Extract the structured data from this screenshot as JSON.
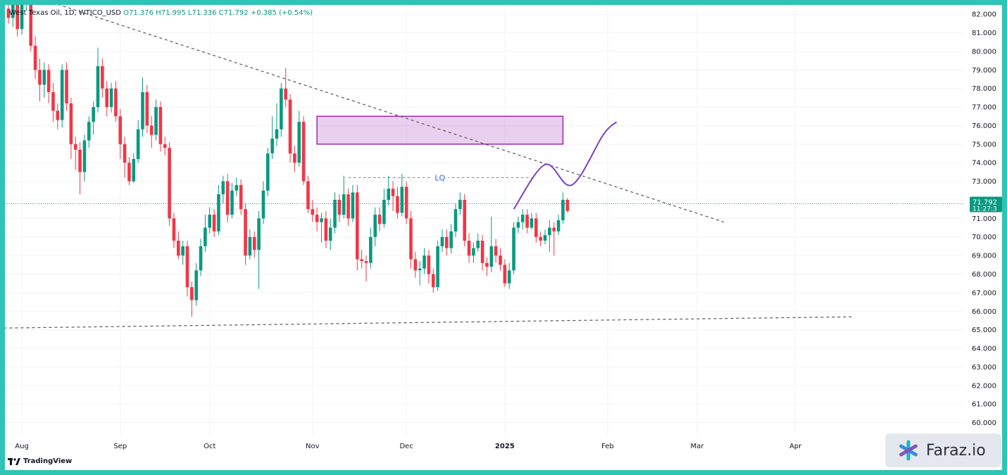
{
  "legend": {
    "symbol": "West Texas Oil, 1D, WTICO_USD",
    "open": "O71.376",
    "high": "H71.995",
    "low": "L71.336",
    "close": "C71.792",
    "change": "+0.385 (+0.54%)"
  },
  "price_tag": {
    "price": "71.792",
    "countdown": "11:27:3"
  },
  "watermark": {
    "tradingview": "TradingView",
    "brand": "Faraz.io"
  },
  "colors": {
    "bull": "#089981",
    "bear": "#f23645",
    "zone": "#9c27b0",
    "path": "#7e3fc7",
    "frame": "#2ec4b6",
    "lq_label": "#2962ff"
  },
  "chart_data": {
    "type": "candlestick",
    "instrument": "WTICO_USD",
    "timeframe": "1D",
    "ylim": [
      59.3,
      82.5
    ],
    "y_ticks": [
      82,
      81,
      80,
      79,
      78,
      77,
      76,
      75,
      74,
      73,
      72,
      71,
      70,
      69,
      68,
      67,
      66,
      65,
      64,
      63,
      62,
      61,
      60
    ],
    "x_ticks": [
      {
        "label": "Aug",
        "bar": 3
      },
      {
        "label": "Sep",
        "bar": 25
      },
      {
        "label": "Oct",
        "bar": 45
      },
      {
        "label": "Nov",
        "bar": 68
      },
      {
        "label": "Dec",
        "bar": 89
      },
      {
        "label": "2025",
        "bar": 111
      },
      {
        "label": "Feb",
        "bar": 134
      },
      {
        "label": "Mar",
        "bar": 154
      },
      {
        "label": "Apr",
        "bar": 176
      }
    ],
    "candles": [
      [
        82.3,
        81.8,
        83.0,
        81.5
      ],
      [
        81.8,
        82.8,
        83.2,
        81.3
      ],
      [
        82.8,
        81.2,
        83.0,
        80.8
      ],
      [
        81.2,
        82.5,
        82.8,
        80.9
      ],
      [
        82.5,
        82.9,
        83.2,
        82.2
      ],
      [
        82.9,
        80.3,
        83.1,
        80.0
      ],
      [
        80.3,
        79.0,
        80.8,
        78.5
      ],
      [
        79.0,
        78.2,
        79.6,
        77.3
      ],
      [
        78.2,
        79.0,
        79.4,
        77.5
      ],
      [
        79.0,
        77.8,
        79.3,
        77.2
      ],
      [
        77.8,
        76.8,
        78.3,
        76.2
      ],
      [
        76.8,
        76.3,
        77.2,
        75.8
      ],
      [
        76.3,
        79.0,
        79.3,
        75.9
      ],
      [
        79.0,
        77.2,
        79.4,
        76.8
      ],
      [
        77.2,
        75.0,
        77.5,
        74.2
      ],
      [
        75.0,
        74.7,
        75.4,
        73.6
      ],
      [
        74.7,
        73.5,
        75.1,
        72.3
      ],
      [
        73.5,
        75.2,
        75.5,
        73.0
      ],
      [
        75.2,
        76.2,
        76.5,
        74.8
      ],
      [
        76.2,
        77.0,
        77.3,
        75.5
      ],
      [
        77.0,
        79.2,
        80.2,
        76.7
      ],
      [
        79.2,
        78.0,
        79.6,
        77.5
      ],
      [
        78.0,
        77.0,
        78.4,
        76.5
      ],
      [
        77.0,
        78.0,
        78.3,
        76.7
      ],
      [
        78.0,
        76.5,
        78.4,
        76.2
      ],
      [
        76.5,
        75.0,
        76.9,
        74.2
      ],
      [
        75.0,
        74.0,
        75.4,
        73.2
      ],
      [
        74.0,
        73.0,
        74.3,
        72.8
      ],
      [
        73.0,
        74.2,
        74.5,
        72.9
      ],
      [
        74.2,
        75.8,
        76.3,
        74.0
      ],
      [
        75.8,
        77.8,
        78.6,
        75.4
      ],
      [
        77.8,
        76.0,
        78.2,
        75.6
      ],
      [
        76.0,
        75.5,
        76.5,
        74.8
      ],
      [
        75.5,
        77.0,
        77.4,
        75.2
      ],
      [
        77.0,
        75.0,
        77.3,
        74.6
      ],
      [
        75.0,
        74.8,
        75.4,
        74.4
      ],
      [
        74.8,
        71.0,
        75.1,
        70.6
      ],
      [
        71.0,
        69.8,
        71.3,
        69.4
      ],
      [
        69.8,
        69.0,
        70.3,
        68.8
      ],
      [
        69.0,
        69.5,
        69.8,
        68.5
      ],
      [
        69.5,
        67.3,
        69.8,
        66.8
      ],
      [
        67.3,
        66.6,
        67.6,
        65.7
      ],
      [
        66.6,
        68.2,
        68.6,
        66.3
      ],
      [
        68.2,
        69.5,
        69.9,
        67.9
      ],
      [
        69.5,
        70.5,
        71.2,
        69.2
      ],
      [
        70.5,
        71.2,
        71.6,
        70.2
      ],
      [
        71.2,
        70.3,
        71.5,
        70.0
      ],
      [
        70.3,
        72.3,
        72.8,
        70.1
      ],
      [
        72.3,
        73.0,
        73.3,
        71.8
      ],
      [
        73.0,
        71.2,
        73.4,
        70.8
      ],
      [
        71.2,
        72.5,
        72.9,
        71.0
      ],
      [
        72.5,
        72.8,
        73.2,
        72.2
      ],
      [
        72.8,
        71.5,
        73.1,
        71.2
      ],
      [
        71.5,
        69.0,
        71.8,
        68.5
      ],
      [
        69.0,
        70.0,
        70.4,
        68.8
      ],
      [
        70.0,
        69.3,
        70.3,
        68.9
      ],
      [
        69.3,
        71.0,
        71.4,
        67.2
      ],
      [
        71.0,
        72.5,
        73.0,
        70.7
      ],
      [
        72.5,
        74.5,
        74.8,
        72.2
      ],
      [
        74.5,
        75.3,
        76.5,
        74.2
      ],
      [
        75.3,
        75.8,
        77.2,
        74.9
      ],
      [
        75.8,
        78.0,
        78.3,
        75.4
      ],
      [
        78.0,
        77.4,
        79.1,
        77.0
      ],
      [
        77.4,
        74.5,
        77.7,
        74.0
      ],
      [
        74.5,
        74.0,
        74.9,
        73.5
      ],
      [
        74.0,
        76.2,
        76.8,
        73.8
      ],
      [
        76.2,
        73.0,
        76.5,
        72.8
      ],
      [
        73.0,
        71.5,
        73.3,
        71.3
      ],
      [
        71.5,
        71.2,
        72.0,
        70.8
      ],
      [
        71.2,
        70.8,
        71.6,
        70.3
      ],
      [
        70.8,
        71.0,
        71.3,
        69.7
      ],
      [
        71.0,
        69.8,
        71.4,
        69.4
      ],
      [
        69.8,
        70.5,
        71.0,
        69.3
      ],
      [
        70.5,
        72.0,
        72.4,
        70.2
      ],
      [
        72.0,
        71.2,
        72.3,
        70.8
      ],
      [
        71.2,
        72.3,
        73.3,
        71.0
      ],
      [
        72.3,
        71.0,
        72.6,
        70.6
      ],
      [
        71.0,
        72.4,
        72.8,
        70.8
      ],
      [
        72.4,
        68.8,
        72.8,
        68.2
      ],
      [
        68.8,
        68.7,
        69.3,
        68.3
      ],
      [
        68.7,
        68.6,
        69.0,
        67.6
      ],
      [
        68.6,
        70.0,
        70.5,
        68.3
      ],
      [
        70.0,
        71.2,
        71.6,
        69.5
      ],
      [
        71.2,
        70.7,
        71.6,
        70.3
      ],
      [
        70.7,
        72.0,
        72.6,
        70.5
      ],
      [
        72.0,
        72.6,
        73.3,
        71.7
      ],
      [
        72.6,
        72.2,
        73.0,
        71.4
      ],
      [
        72.2,
        71.3,
        72.7,
        71.0
      ],
      [
        71.3,
        72.7,
        73.4,
        71.1
      ],
      [
        72.7,
        71.0,
        73.0,
        70.7
      ],
      [
        71.0,
        68.8,
        71.4,
        68.3
      ],
      [
        68.8,
        68.2,
        69.2,
        67.8
      ],
      [
        68.2,
        68.3,
        68.7,
        67.4
      ],
      [
        68.3,
        69.0,
        69.4,
        68.0
      ],
      [
        69.0,
        68.0,
        69.3,
        67.5
      ],
      [
        68.0,
        67.3,
        68.3,
        67.0
      ],
      [
        67.3,
        69.5,
        69.8,
        67.1
      ],
      [
        69.5,
        70.0,
        70.4,
        69.2
      ],
      [
        70.0,
        69.4,
        70.4,
        69.0
      ],
      [
        69.4,
        70.3,
        70.7,
        69.1
      ],
      [
        70.3,
        71.5,
        71.8,
        70.0
      ],
      [
        71.5,
        72.0,
        72.4,
        71.2
      ],
      [
        72.0,
        69.8,
        72.3,
        69.5
      ],
      [
        69.8,
        69.0,
        70.2,
        68.6
      ],
      [
        69.0,
        69.4,
        69.7,
        68.6
      ],
      [
        69.4,
        69.8,
        70.2,
        69.2
      ],
      [
        69.8,
        68.6,
        70.1,
        68.2
      ],
      [
        68.6,
        68.4,
        68.9,
        67.9
      ],
      [
        68.4,
        69.5,
        71.1,
        68.1
      ],
      [
        69.5,
        69.0,
        69.9,
        68.6
      ],
      [
        69.0,
        68.5,
        69.4,
        68.2
      ],
      [
        68.5,
        67.5,
        68.8,
        67.3
      ],
      [
        67.5,
        68.2,
        68.6,
        67.2
      ],
      [
        68.2,
        70.5,
        70.8,
        68.0
      ],
      [
        70.5,
        70.8,
        71.1,
        70.2
      ],
      [
        70.8,
        71.2,
        71.5,
        70.4
      ],
      [
        71.2,
        70.5,
        71.5,
        70.2
      ],
      [
        70.5,
        71.0,
        71.3,
        70.4
      ],
      [
        71.0,
        70.0,
        71.3,
        69.7
      ],
      [
        70.0,
        69.8,
        70.3,
        69.5
      ],
      [
        69.8,
        70.1,
        70.4,
        69.6
      ],
      [
        70.1,
        70.5,
        70.9,
        69.2
      ],
      [
        70.5,
        70.3,
        70.8,
        69.0
      ],
      [
        70.3,
        70.9,
        71.2,
        70.1
      ],
      [
        70.9,
        72.0,
        72.4,
        70.7
      ],
      [
        72.0,
        71.4,
        72.1,
        71.3
      ]
    ],
    "annotations": {
      "supply_zone": {
        "price_top": 76.5,
        "price_bottom": 75.0,
        "from_bar": 69,
        "to_bar": 124
      },
      "liquidity_line": {
        "label": "LQ",
        "price": 73.2,
        "from_bar": 76,
        "to_bar": 117
      },
      "down_trendline": {
        "start_bar": 5,
        "start_price": 83.0,
        "end_bar": 160,
        "end_price": 70.8
      },
      "up_trendline": {
        "start_bar": -30,
        "start_price": 65.0,
        "end_bar": 189,
        "end_price": 65.7
      },
      "projection": [
        [
          113,
          71.5
        ],
        [
          120,
          73.9
        ],
        [
          126,
          72.8
        ],
        [
          133,
          75.5
        ],
        [
          136,
          76.2
        ]
      ],
      "current_price": 71.792
    }
  }
}
